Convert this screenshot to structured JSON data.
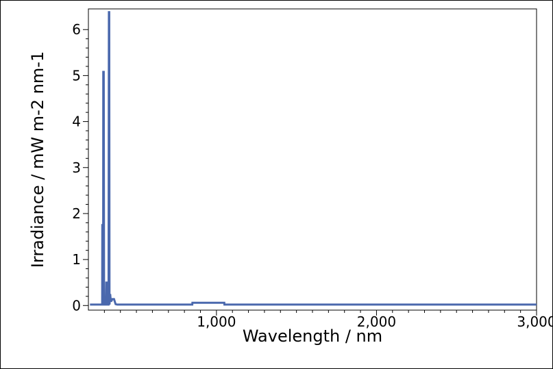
{
  "chart_data": {
    "type": "line",
    "xlabel": "Wavelength / nm",
    "ylabel": "Irradiance / mW m-2 nm-1",
    "xlim": [
      200,
      3000
    ],
    "ylim": [
      -0.1,
      6.45
    ],
    "x_ticks": [
      1000,
      2000,
      3000
    ],
    "x_tick_labels": [
      "1,000",
      "2,000",
      "3,000"
    ],
    "y_ticks": [
      0,
      1,
      2,
      3,
      4,
      5,
      6
    ],
    "y_tick_labels": [
      "0",
      "1",
      "2",
      "3",
      "4",
      "5",
      "6"
    ],
    "grid": false,
    "legend": "none",
    "colors": {
      "line": "#4a68ad",
      "axis": "#000000"
    },
    "series": [
      {
        "x": [
          210,
          286,
          287,
          289,
          292,
          293,
          296,
          298,
          300,
          302,
          304,
          310,
          312,
          314,
          316,
          320,
          326,
          328,
          330,
          332,
          336,
          340,
          344,
          350,
          360,
          370,
          380,
          400,
          500,
          700,
          849,
          850,
          1000,
          1049,
          1050,
          2000,
          3000
        ],
        "y": [
          0.02,
          0.02,
          1.75,
          1.75,
          0.02,
          5.08,
          5.08,
          0.02,
          0.02,
          0.02,
          0.02,
          0.02,
          0.5,
          0.5,
          0.02,
          0.02,
          0.02,
          6.38,
          6.38,
          0.02,
          0.25,
          0.1,
          0.1,
          0.14,
          0.14,
          0.03,
          0.02,
          0.02,
          0.02,
          0.02,
          0.02,
          0.06,
          0.06,
          0.06,
          0.02,
          0.02,
          0.02
        ]
      }
    ]
  }
}
